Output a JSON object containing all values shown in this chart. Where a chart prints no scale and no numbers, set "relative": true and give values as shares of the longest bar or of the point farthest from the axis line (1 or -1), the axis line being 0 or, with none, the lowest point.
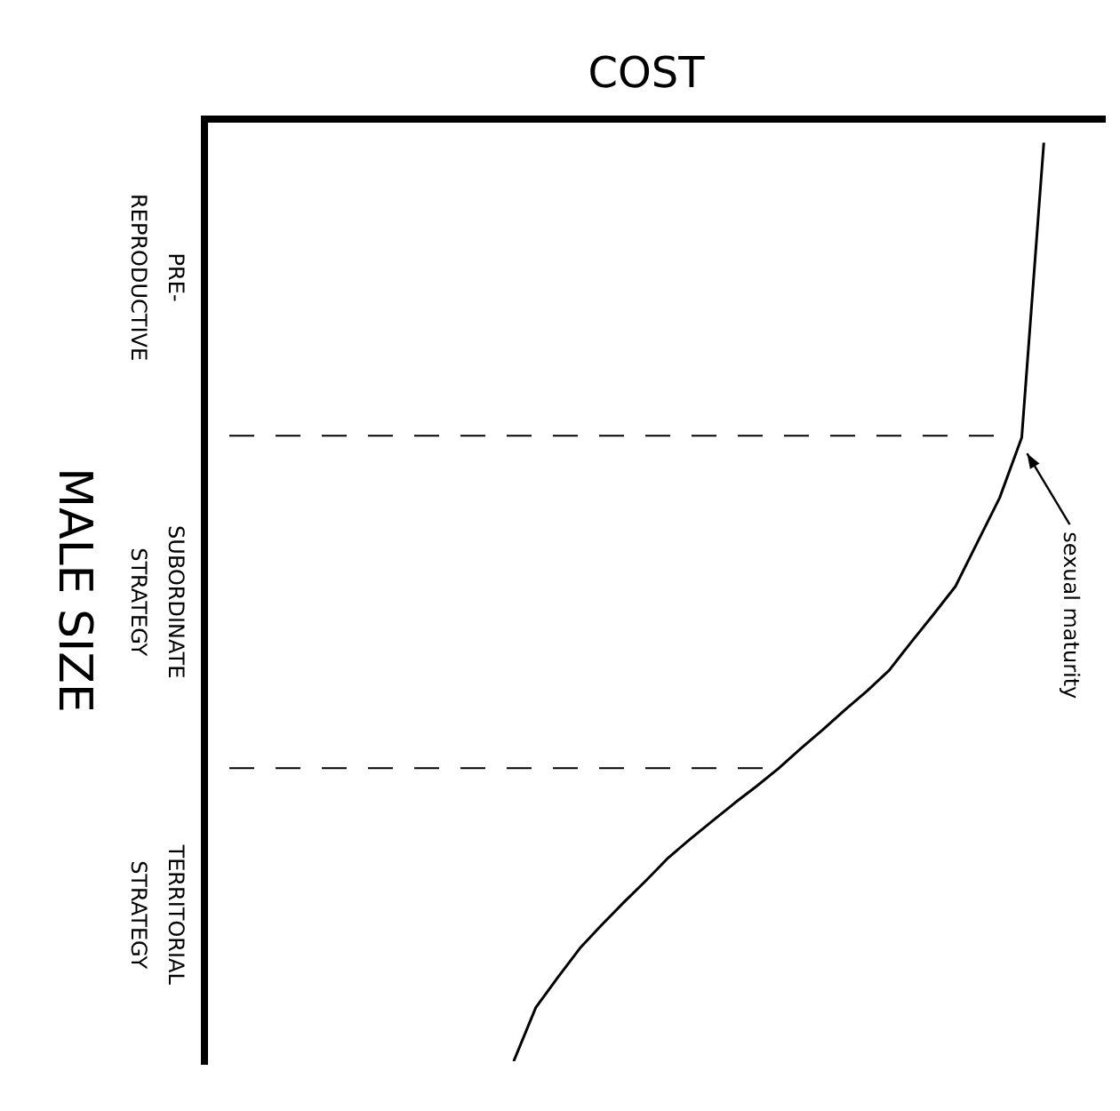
{
  "chart_data": {
    "type": "line",
    "xlabel": "COST",
    "ylabel": "MALE SIZE",
    "relative": true,
    "categories": [
      null,
      null,
      null,
      null,
      null,
      null,
      null,
      null,
      null,
      null,
      null,
      null,
      null,
      null,
      null,
      null,
      null,
      null,
      null,
      null,
      null,
      null,
      null,
      null,
      null,
      null,
      null,
      null,
      null,
      null,
      null,
      null,
      null,
      null,
      null,
      null,
      null,
      null,
      null,
      null,
      null
    ],
    "series": [
      {
        "color": "#000000",
        "values": [
          null,
          null,
          null,
          null,
          null,
          null,
          null,
          null,
          null,
          null,
          null,
          null,
          null,
          null,
          -1,
          -0.943,
          -0.911,
          -0.88,
          -0.855,
          -0.831,
          -0.808,
          -0.784,
          -0.764,
          -0.745,
          -0.726,
          -0.708,
          -0.689,
          -0.668,
          -0.648,
          -0.627,
          -0.607,
          -0.585,
          -0.555,
          -0.526,
          -0.496,
          -0.449,
          -0.402,
          -0.338,
          -0.025,
          null,
          null
        ]
      }
    ],
    "ref_lines": [
      {
        "axis": "y",
        "value": -0.336,
        "line_style": "dashed",
        "color": "#000000"
      },
      {
        "axis": "y",
        "value": -0.689,
        "line_style": "dashed",
        "color": "#000000"
      }
    ],
    "annotations": [
      "PRE-\nREPRODUCTIVE",
      "SUBORDINATE\nSTRATEGY",
      "TERRITORIAL\nSTRATEGY",
      "sexual maturity"
    ]
  }
}
